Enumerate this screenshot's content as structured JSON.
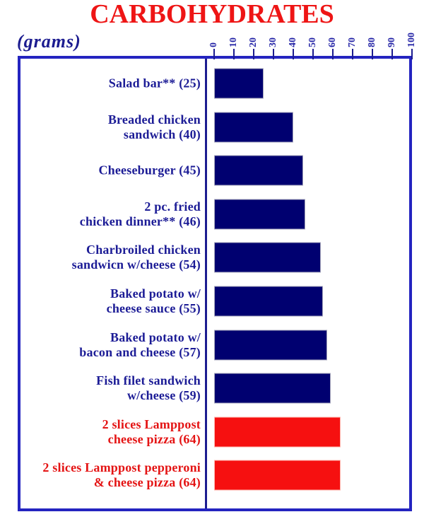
{
  "title": "CARBOHYDRATES",
  "unit_label": "(grams)",
  "colors": {
    "title_red": "#ee1515",
    "label_navy": "#1c1c96",
    "label_red": "#e41414",
    "bar_navy": "#000070",
    "bar_red": "#f61010",
    "bar_navy_outline": "#a8a8bc",
    "bar_red_outline": "#ffb4ac",
    "axis_navy": "#1c1c90",
    "tick_text_blue": "#2828a8",
    "frame_blue": "#2424c0"
  },
  "chart_data": {
    "type": "bar",
    "orientation": "horizontal",
    "title": "CARBOHYDRATES",
    "xlabel": "(grams)",
    "ylabel": "",
    "xlim": [
      0,
      100
    ],
    "x_ticks": [
      0,
      10,
      20,
      30,
      40,
      50,
      60,
      70,
      80,
      90,
      100
    ],
    "grid": false,
    "legend": "none",
    "axis_position": "top",
    "items": [
      {
        "label_lines": [
          "Salad bar** (25)"
        ],
        "value": 25,
        "color": "navy"
      },
      {
        "label_lines": [
          "Breaded chicken",
          "sandwich (40)"
        ],
        "value": 40,
        "color": "navy"
      },
      {
        "label_lines": [
          "Cheeseburger (45)"
        ],
        "value": 45,
        "color": "navy"
      },
      {
        "label_lines": [
          "2 pc. fried",
          "chicken dinner** (46)"
        ],
        "value": 46,
        "color": "navy"
      },
      {
        "label_lines": [
          "Charbroiled chicken",
          "sandwicn w/cheese (54)"
        ],
        "value": 54,
        "color": "navy"
      },
      {
        "label_lines": [
          "Baked potato w/",
          "cheese sauce (55)"
        ],
        "value": 55,
        "color": "navy"
      },
      {
        "label_lines": [
          "Baked potato w/",
          "bacon and cheese (57)"
        ],
        "value": 57,
        "color": "navy"
      },
      {
        "label_lines": [
          "Fish filet sandwich",
          "w/cheese (59)"
        ],
        "value": 59,
        "color": "navy"
      },
      {
        "label_lines": [
          "2 slices Lamppost",
          "cheese pizza (64)"
        ],
        "value": 64,
        "color": "red"
      },
      {
        "label_lines": [
          "2 slices Lamppost pepperoni",
          "& cheese pizza (64)"
        ],
        "value": 64,
        "color": "red"
      }
    ]
  }
}
